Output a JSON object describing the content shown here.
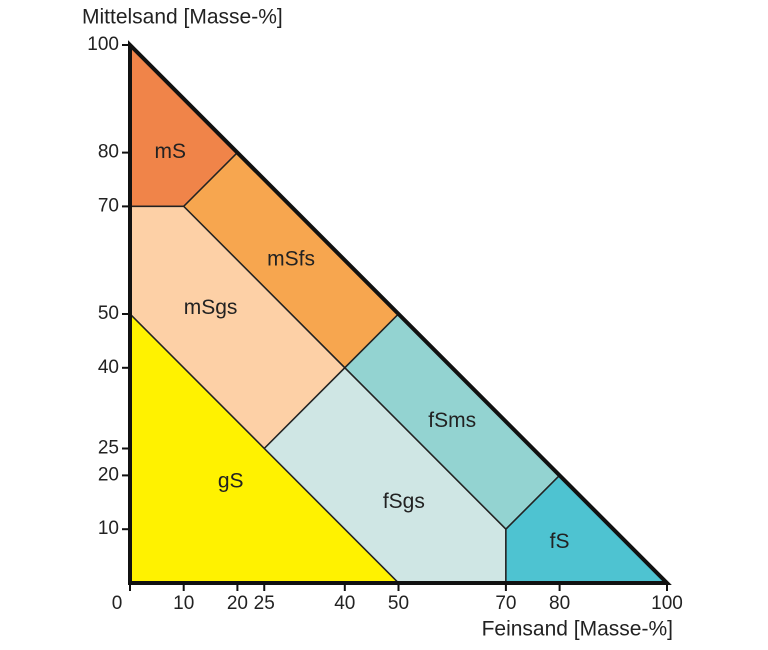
{
  "chart_data": {
    "type": "regions",
    "x_label": "Feinsand [Masse-%]",
    "y_label": "Mittelsand [Masse-%]",
    "xlim": [
      0,
      100
    ],
    "ylim": [
      0,
      100
    ],
    "xticks": [
      0,
      10,
      20,
      25,
      40,
      50,
      70,
      80,
      100
    ],
    "yticks": [
      10,
      20,
      25,
      40,
      50,
      70,
      80,
      100
    ],
    "regions": [
      {
        "name": "mS",
        "color": "#f08449",
        "points": [
          [
            0,
            100
          ],
          [
            0,
            70
          ],
          [
            10,
            70
          ],
          [
            20,
            80
          ]
        ]
      },
      {
        "name": "mSfs",
        "color": "#f7a64f",
        "points": [
          [
            10,
            70
          ],
          [
            20,
            80
          ],
          [
            50,
            50
          ],
          [
            40,
            40
          ]
        ]
      },
      {
        "name": "mSgs",
        "color": "#fdd0a6",
        "points": [
          [
            0,
            70
          ],
          [
            10,
            70
          ],
          [
            40,
            40
          ],
          [
            25,
            25
          ],
          [
            0,
            50
          ]
        ]
      },
      {
        "name": "fSms",
        "color": "#93d3d1",
        "points": [
          [
            40,
            40
          ],
          [
            50,
            50
          ],
          [
            80,
            20
          ],
          [
            70,
            10
          ]
        ]
      },
      {
        "name": "fSgs",
        "color": "#cfe6e4",
        "points": [
          [
            25,
            25
          ],
          [
            40,
            40
          ],
          [
            70,
            10
          ],
          [
            70,
            0
          ],
          [
            50,
            0
          ]
        ]
      },
      {
        "name": "fS",
        "color": "#4ec3d1",
        "points": [
          [
            70,
            10
          ],
          [
            80,
            20
          ],
          [
            100,
            0
          ],
          [
            70,
            0
          ]
        ]
      },
      {
        "name": "gS",
        "color": "#fff200",
        "points": [
          [
            0,
            50
          ],
          [
            25,
            25
          ],
          [
            50,
            0
          ],
          [
            0,
            0
          ]
        ]
      }
    ]
  }
}
